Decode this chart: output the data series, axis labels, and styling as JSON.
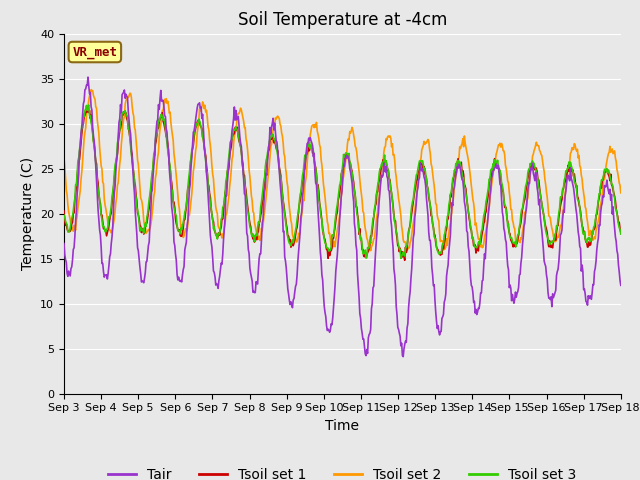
{
  "title": "Soil Temperature at -4cm",
  "xlabel": "Time",
  "ylabel": "Temperature (C)",
  "ylim": [
    0,
    40
  ],
  "xtick_labels": [
    "Sep 3",
    "Sep 4",
    "Sep 5",
    "Sep 6",
    "Sep 7",
    "Sep 8",
    "Sep 9",
    "Sep 10",
    "Sep 11",
    "Sep 12",
    "Sep 13",
    "Sep 14",
    "Sep 15",
    "Sep 16",
    "Sep 17",
    "Sep 18"
  ],
  "annotation": "VR_met",
  "legend_labels": [
    "Tair",
    "Tsoil set 1",
    "Tsoil set 2",
    "Tsoil set 3"
  ],
  "colors": {
    "Tair": "#9933cc",
    "Tsoil set 1": "#cc0000",
    "Tsoil set 2": "#ff9900",
    "Tsoil set 3": "#33cc00"
  },
  "background_color": "#e8e8e8",
  "fig_background": "#e8e8e8",
  "title_fontsize": 12,
  "axis_label_fontsize": 10,
  "tick_fontsize": 8,
  "legend_fontsize": 10,
  "line_width": 1.2,
  "n_days": 15,
  "pts_per_day": 48
}
